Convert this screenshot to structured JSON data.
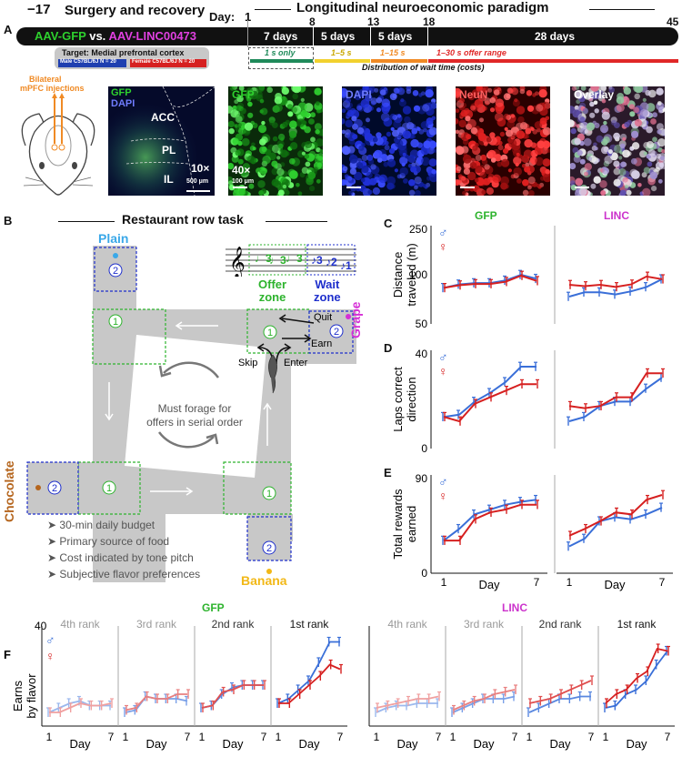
{
  "colors": {
    "gfp": "#2db32d",
    "linc": "#cc33cc",
    "male": "#3a6fd8",
    "female": "#d62020",
    "dark": "#111111",
    "yellow": "#f2d12e",
    "orange": "#f08a24",
    "red": "#e02828",
    "teal": "#1f8a5a",
    "gray": "#c8c8c8",
    "blue_text": "#1e2fcc"
  },
  "panel_a": {
    "letter": "A",
    "surgery_title": "Surgery and recovery",
    "longitudinal_title": "Longitudinal neuroeconomic paradigm",
    "day_neg17": "−17",
    "day_label": "Day:",
    "day_1": "1",
    "day_8": "8",
    "day_13": "13",
    "day_18": "18",
    "day_45": "45",
    "bar_aav_gfp": "AAV-GFP",
    "bar_vs": "vs.",
    "bar_aav_linc": "AAV-LINC00473",
    "seg_7days": "7 days",
    "seg_5days_a": "5 days",
    "seg_5days_b": "5 days",
    "seg_28days": "28 days",
    "target_label": "Target: Medial prefrontal cortex",
    "male_label": "Male C57BL/6J",
    "male_n": "N = 20",
    "female_label": "Female C57BL/6J",
    "female_n": "N = 20",
    "wait_1s": "1 s only",
    "wait_1_5": "1–5 s",
    "wait_1_15": "1–15 s",
    "wait_1_30": "1–30 s offer range",
    "wait_caption": "Distribution of wait time (costs)",
    "injection_label_1": "Bilateral",
    "injection_label_2": "mPFC injections",
    "img1_gfp": "GFP",
    "img1_dapi": "DAPI",
    "region_acc": "ACC",
    "region_pl": "PL",
    "region_il": "IL",
    "mag_10x": "10×",
    "scale_500": "500 μm",
    "img2_label": "GFP",
    "mag_40x": "40×",
    "scale_100": "100 μm",
    "img3_label": "DAPI",
    "img4_label": "NeuN",
    "img5_label": "Overlay"
  },
  "panel_b": {
    "letter": "B",
    "title": "Restaurant row task",
    "plain": "Plain",
    "grape": "Grape",
    "chocolate": "Chocolate",
    "banana": "Banana",
    "offer_zone_1": "Offer",
    "offer_zone_2": "zone",
    "wait_zone_1": "Wait",
    "wait_zone_2": "zone",
    "zone_1": "1",
    "zone_2": "2",
    "quit": "Quit",
    "earn": "Earn",
    "skip": "Skip",
    "enter": "Enter",
    "center_text_1": "Must forage for",
    "center_text_2": "offers in serial order",
    "notes": [
      "30-min daily budget",
      "Primary source of food",
      "Cost indicated by tone pitch",
      "Subjective flavor preferences"
    ],
    "plain_color": "#3aa8e8",
    "grape_color": "#d62fd6",
    "chocolate_color": "#b5651d",
    "banana_color": "#f2b817"
  },
  "panel_c": {
    "letter": "C",
    "ylabel_1": "Distance",
    "ylabel_2": "traveled (m)",
    "yticks": [
      "250",
      "100",
      "50"
    ],
    "col_gfp": "GFP",
    "col_linc": "LINC"
  },
  "panel_d": {
    "letter": "D",
    "ylabel_1": "Laps correct",
    "ylabel_2": "direction",
    "yticks": [
      "40",
      "0"
    ]
  },
  "panel_e": {
    "letter": "E",
    "ylabel_1": "Total rewards",
    "ylabel_2": "earned",
    "yticks": [
      "90",
      "0"
    ],
    "xlabel": "Day",
    "xtick_1": "1",
    "xtick_7": "7"
  },
  "panel_f": {
    "letter": "F",
    "ylabel_1": "Earns",
    "ylabel_2": "by flavor",
    "ytick": "40",
    "title_gfp": "GFP",
    "title_linc": "LINC",
    "ranks": [
      "4th rank",
      "3rd rank",
      "2nd rank",
      "1st rank"
    ],
    "xlabel": "Day",
    "xtick_1": "1",
    "xtick_7": "7"
  },
  "symbols": {
    "male": "♂",
    "female": "♀"
  },
  "chart_data": [
    {
      "id": "C-GFP",
      "type": "line",
      "title": "GFP",
      "ylabel": "Distance traveled (m)",
      "ylim": [
        50,
        250
      ],
      "x": [
        1,
        2,
        3,
        4,
        5,
        6,
        7
      ],
      "series": [
        {
          "name": "Male",
          "values": [
            120,
            128,
            131,
            131,
            137,
            150,
            141
          ]
        },
        {
          "name": "Female",
          "values": [
            120,
            126,
            129,
            129,
            134,
            148,
            136
          ]
        }
      ]
    },
    {
      "id": "C-LINC",
      "type": "line",
      "title": "LINC",
      "ylabel": "Distance traveled (m)",
      "ylim": [
        50,
        250
      ],
      "x": [
        1,
        2,
        3,
        4,
        5,
        6,
        7
      ],
      "series": [
        {
          "name": "Male",
          "values": [
            100,
            110,
            110,
            105,
            112,
            122,
            140
          ]
        },
        {
          "name": "Female",
          "values": [
            127,
            124,
            127,
            122,
            128,
            146,
            140
          ]
        }
      ]
    },
    {
      "id": "D-GFP",
      "type": "line",
      "ylabel": "Laps correct direction",
      "ylim": [
        0,
        40
      ],
      "x": [
        1,
        2,
        3,
        4,
        5,
        6,
        7
      ],
      "series": [
        {
          "name": "Male",
          "values": [
            12,
            13,
            19,
            23,
            28,
            35,
            35
          ]
        },
        {
          "name": "Female",
          "values": [
            12,
            10,
            18,
            21,
            24,
            27,
            27
          ]
        }
      ]
    },
    {
      "id": "D-LINC",
      "type": "line",
      "ylabel": "Laps correct direction",
      "ylim": [
        0,
        40
      ],
      "x": [
        1,
        2,
        3,
        4,
        5,
        6,
        7
      ],
      "series": [
        {
          "name": "Male",
          "values": [
            10,
            12,
            17,
            19,
            19,
            25,
            30
          ]
        },
        {
          "name": "Female",
          "values": [
            17,
            16,
            17,
            21,
            21,
            32,
            32
          ]
        }
      ]
    },
    {
      "id": "E-GFP",
      "type": "line",
      "ylabel": "Total rewards earned",
      "ylim": [
        0,
        90
      ],
      "x": [
        1,
        2,
        3,
        4,
        5,
        6,
        7
      ],
      "series": [
        {
          "name": "Male",
          "values": [
            28,
            40,
            55,
            60,
            65,
            68,
            70
          ]
        },
        {
          "name": "Female",
          "values": [
            28,
            28,
            50,
            57,
            60,
            65,
            65
          ]
        }
      ]
    },
    {
      "id": "E-LINC",
      "type": "line",
      "ylabel": "Total rewards earned",
      "ylim": [
        0,
        90
      ],
      "x": [
        1,
        2,
        3,
        4,
        5,
        6,
        7
      ],
      "series": [
        {
          "name": "Male",
          "values": [
            22,
            30,
            48,
            52,
            50,
            55,
            62
          ]
        },
        {
          "name": "Female",
          "values": [
            33,
            40,
            48,
            57,
            55,
            70,
            75
          ]
        }
      ]
    },
    {
      "id": "F-GFP-4th",
      "type": "line",
      "title": "4th rank",
      "ylim": [
        0,
        40
      ],
      "x": [
        1,
        2,
        3,
        4,
        5,
        6,
        7
      ],
      "series": [
        {
          "name": "Male",
          "values": [
            6,
            8,
            10,
            11,
            9,
            9,
            9
          ]
        },
        {
          "name": "Female",
          "values": [
            6,
            6,
            8,
            10,
            9,
            9,
            10
          ]
        }
      ]
    },
    {
      "id": "F-GFP-3rd",
      "type": "line",
      "title": "3rd rank",
      "ylim": [
        0,
        40
      ],
      "x": [
        1,
        2,
        3,
        4,
        5,
        6,
        7
      ],
      "series": [
        {
          "name": "Male",
          "values": [
            6,
            7,
            13,
            12,
            12,
            12,
            11
          ]
        },
        {
          "name": "Female",
          "values": [
            7,
            8,
            13,
            12,
            12,
            14,
            14
          ]
        }
      ]
    },
    {
      "id": "F-GFP-2nd",
      "type": "line",
      "title": "2nd rank",
      "ylim": [
        0,
        40
      ],
      "x": [
        1,
        2,
        3,
        4,
        5,
        6,
        7
      ],
      "series": [
        {
          "name": "Male",
          "values": [
            8,
            9,
            14,
            17,
            18,
            18,
            18
          ]
        },
        {
          "name": "Female",
          "values": [
            8,
            9,
            15,
            16,
            18,
            18,
            18
          ]
        }
      ]
    },
    {
      "id": "F-GFP-1st",
      "type": "line",
      "title": "1st rank",
      "ylim": [
        0,
        40
      ],
      "x": [
        1,
        2,
        3,
        4,
        5,
        6,
        7
      ],
      "series": [
        {
          "name": "Male",
          "values": [
            10,
            12,
            16,
            20,
            28,
            37,
            37
          ]
        },
        {
          "name": "Female",
          "values": [
            10,
            10,
            14,
            18,
            22,
            27,
            25
          ]
        }
      ]
    },
    {
      "id": "F-LINC-4th",
      "type": "line",
      "title": "4th rank",
      "ylim": [
        0,
        40
      ],
      "x": [
        1,
        2,
        3,
        4,
        5,
        6,
        7
      ],
      "series": [
        {
          "name": "Male",
          "values": [
            6,
            8,
            9,
            9,
            10,
            10,
            10
          ]
        },
        {
          "name": "Female",
          "values": [
            8,
            9,
            10,
            11,
            12,
            12,
            13
          ]
        }
      ]
    },
    {
      "id": "F-LINC-3rd",
      "type": "line",
      "title": "3rd rank",
      "ylim": [
        0,
        40
      ],
      "x": [
        1,
        2,
        3,
        4,
        5,
        6,
        7
      ],
      "series": [
        {
          "name": "Male",
          "values": [
            6,
            8,
            10,
            12,
            12,
            12,
            13
          ]
        },
        {
          "name": "Female",
          "values": [
            7,
            9,
            11,
            12,
            14,
            15,
            16
          ]
        }
      ]
    },
    {
      "id": "F-LINC-2nd",
      "type": "line",
      "title": "2nd rank",
      "ylim": [
        0,
        40
      ],
      "x": [
        1,
        2,
        3,
        4,
        5,
        6,
        7
      ],
      "series": [
        {
          "name": "Male",
          "values": [
            6,
            8,
            10,
            12,
            12,
            13,
            13
          ]
        },
        {
          "name": "Female",
          "values": [
            10,
            11,
            12,
            14,
            16,
            18,
            20
          ]
        }
      ]
    },
    {
      "id": "F-LINC-1st",
      "type": "line",
      "title": "1st rank",
      "ylim": [
        0,
        40
      ],
      "x": [
        1,
        2,
        3,
        4,
        5,
        6,
        7
      ],
      "series": [
        {
          "name": "Male",
          "values": [
            8,
            9,
            14,
            16,
            20,
            27,
            33
          ]
        },
        {
          "name": "Female",
          "values": [
            10,
            14,
            16,
            21,
            24,
            34,
            33
          ]
        }
      ]
    }
  ]
}
